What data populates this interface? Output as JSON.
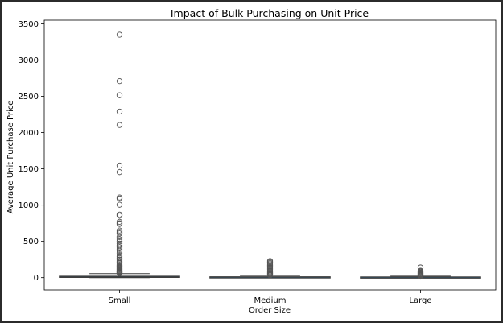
{
  "chart_data": {
    "type": "box",
    "title": "Impact of Bulk Purchasing on Unit Price",
    "xlabel": "Order Size",
    "ylabel": "Average Unit Purchase Price",
    "categories": [
      "Small",
      "Medium",
      "Large"
    ],
    "ylim": [
      -170,
      3550
    ],
    "yticks": [
      0,
      500,
      1000,
      1500,
      2000,
      2500,
      3000,
      3500
    ],
    "grid": false,
    "legend": "none",
    "box_color": "#1f77b4",
    "boxes": [
      {
        "category": "Small",
        "q1": 5,
        "median": 11,
        "q3": 20,
        "whisker_low": 0,
        "whisker_high": 55,
        "outliers": [
          3350,
          2710,
          2515,
          2290,
          2105,
          1545,
          1455,
          1105,
          1090,
          1005,
          870,
          855,
          770,
          750,
          740,
          650,
          630,
          610,
          560,
          530,
          500,
          470,
          445,
          420,
          395,
          370,
          340,
          310,
          290,
          270,
          250,
          230,
          215,
          200,
          185,
          170,
          160,
          150,
          140,
          130,
          120,
          110,
          100,
          92,
          85,
          78,
          72,
          66,
          60
        ]
      },
      {
        "category": "Medium",
        "q1": 2,
        "median": 6,
        "q3": 12,
        "whisker_low": 0,
        "whisker_high": 28,
        "outliers": [
          230,
          215,
          200,
          185,
          170,
          155,
          140,
          125,
          110,
          95,
          82,
          70,
          60,
          50,
          42,
          35
        ]
      },
      {
        "category": "Large",
        "q1": 1,
        "median": 5,
        "q3": 10,
        "whisker_low": 0,
        "whisker_high": 20,
        "outliers": [
          140,
          95,
          85,
          75,
          65,
          55,
          48,
          42,
          36,
          30,
          25
        ]
      }
    ]
  }
}
